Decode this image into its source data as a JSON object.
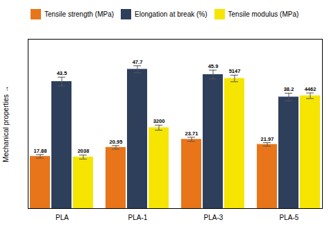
{
  "chart_data": {
    "type": "bar",
    "categories": [
      "PLA",
      "PLA-1",
      "PLA-3",
      "PLA-5"
    ],
    "series": [
      {
        "name": "Tensile strength (MPa)",
        "color": "#E8751A",
        "values": [
          17.88,
          20.95,
          23.71,
          21.97
        ],
        "errors": [
          0.6,
          0.6,
          0.7,
          0.6
        ]
      },
      {
        "name": "Elongation at break (%)",
        "color": "#2E3F5C",
        "values": [
          43.5,
          47.7,
          45.9,
          38.2
        ],
        "errors": [
          1.5,
          1.2,
          1.5,
          1.3
        ]
      },
      {
        "name": "Tensile modulus (MPa)",
        "color": "#F5E500",
        "values": [
          2038,
          3200,
          5147,
          4462
        ],
        "errors": [
          80,
          100,
          130,
          110
        ],
        "axis": "y2"
      }
    ],
    "ylabel": "Mechanical properties",
    "ylim": [
      0,
      58
    ],
    "yticks": [],
    "y2lim": [
      0,
      6700
    ],
    "y2ticks": [],
    "data_labels": true,
    "tick_labels": "x",
    "legend": "upper left"
  }
}
